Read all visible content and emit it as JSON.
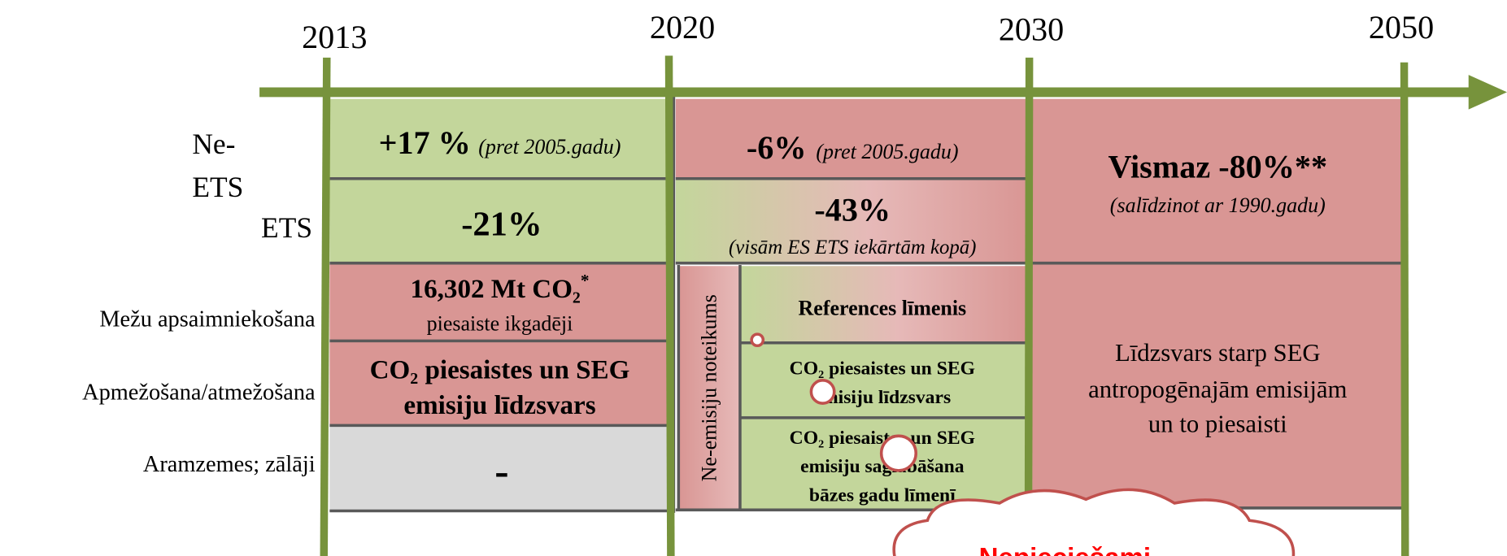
{
  "timeline": {
    "years": [
      "2013",
      "2020",
      "2030",
      "2050"
    ]
  },
  "row_labels": {
    "non_ets": [
      "Ne-",
      "ETS"
    ],
    "ets": "ETS",
    "forest_management": "Mežu apsaimniekošana",
    "afforestation": "Apmežošana/atmežošana",
    "cropland": "Aramzemes; zālāji"
  },
  "period_2013_2020": {
    "non_ets": {
      "value": "+17 %",
      "note": "(pret 2005.gadu)"
    },
    "ets": "-21%",
    "forest_management": {
      "value": "16,302 Mt CO₂",
      "mark": "*",
      "note": "piesaiste ikgadēji"
    },
    "afforestation": [
      "CO₂ piesaistes un SEG",
      "emisiju līdzsvars"
    ],
    "cropland": "-"
  },
  "period_2020_2030": {
    "non_ets": {
      "value": "-6%",
      "note": "(pret 2005.gadu)"
    },
    "ets": {
      "value": "-43%",
      "note": "(visām ES ETS iekārtām kopā)"
    },
    "no_debit_rule": "Ne-emisiju noteikums",
    "forest_management": "References līmenis",
    "afforestation": [
      "CO₂ piesaistes un SEG",
      "emisiju līdzsvars"
    ],
    "cropland": [
      "CO₂ piesaistes un SEG",
      "emisiju saglabāšana",
      "bāzes gadu līmenī"
    ]
  },
  "period_2030_2050": {
    "emissions": {
      "value": "Vismaz -80%**",
      "note": "(salīdzinot ar 1990.gadu)"
    },
    "land_use": [
      "Līdzsvars starp SEG",
      "antropogēnajām emisijām",
      "un to piesaisti"
    ]
  },
  "callout": "Nepieciešami"
}
